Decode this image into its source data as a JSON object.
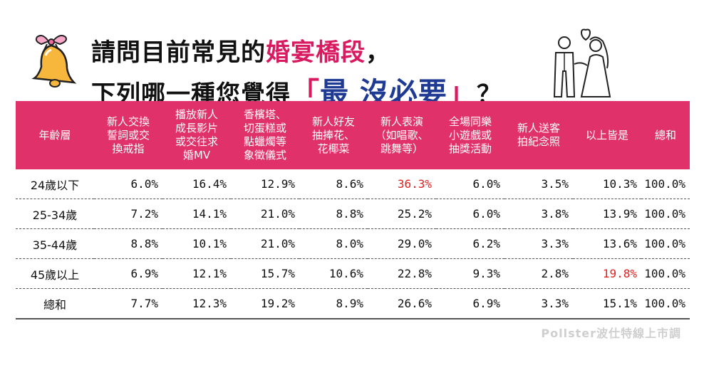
{
  "title": {
    "line1_prefix": "請問目前常見的",
    "line1_highlight": "婚宴橋段",
    "line1_suffix": "，",
    "line2_prefix": "下列哪一種您覺得",
    "line2_open": "「",
    "line2_highlight": "最 沒必要",
    "line2_close": "」",
    "line2_suffix": "？"
  },
  "source": "Pollster波仕特線上市調",
  "colors": {
    "header_bg": "#e0316b",
    "highlight_pink": "#d81b60",
    "highlight_navy": "#1f3a93",
    "max_value": "#e02020"
  },
  "chart_data": {
    "type": "table",
    "columns": [
      "年齡層",
      "新人交換誓詞或交換戒指",
      "播放新人成長影片或交往求婚MV",
      "香檳塔、切蛋糕或點蠟燭等象徵儀式",
      "新人好友抽捧花、花椰菜",
      "新人表演（如唱歌、跳舞等）",
      "全場同樂小遊戲或抽獎活動",
      "新人送客拍紀念照",
      "以上皆是",
      "總和"
    ],
    "header_lines": [
      [
        "年齡層"
      ],
      [
        "新人交換",
        "誓詞或交",
        "換戒指"
      ],
      [
        "播放新人",
        "成長影片",
        "或交往求",
        "婚MV"
      ],
      [
        "香檳塔、",
        "切蛋糕或",
        "點蠟燭等",
        "象徵儀式"
      ],
      [
        "新人好友",
        "抽捧花、",
        "花椰菜"
      ],
      [
        "新人表演",
        "（如唱歌、",
        "跳舞等）"
      ],
      [
        "全場同樂",
        "小遊戲或",
        "抽獎活動"
      ],
      [
        "新人送客",
        "拍紀念照"
      ],
      [
        "以上皆是"
      ],
      [
        "總和"
      ]
    ],
    "rows": [
      {
        "label": "24歲以下",
        "values": [
          "6.0%",
          "16.4%",
          "12.9%",
          "8.6%",
          "36.3%",
          "6.0%",
          "3.5%",
          "10.3%",
          "100.0%"
        ],
        "highlight_index": 4
      },
      {
        "label": "25-34歲",
        "values": [
          "7.2%",
          "14.1%",
          "21.0%",
          "8.8%",
          "25.2%",
          "6.0%",
          "3.8%",
          "13.9%",
          "100.0%"
        ],
        "highlight_index": -1
      },
      {
        "label": "35-44歲",
        "values": [
          "8.8%",
          "10.1%",
          "21.0%",
          "8.0%",
          "29.0%",
          "6.2%",
          "3.3%",
          "13.6%",
          "100.0%"
        ],
        "highlight_index": -1
      },
      {
        "label": "45歲以上",
        "values": [
          "6.9%",
          "12.1%",
          "15.7%",
          "10.6%",
          "22.8%",
          "9.3%",
          "2.8%",
          "19.8%",
          "100.0%"
        ],
        "highlight_index": 7
      },
      {
        "label": "總和",
        "values": [
          "7.7%",
          "12.3%",
          "19.2%",
          "8.9%",
          "26.6%",
          "6.9%",
          "3.3%",
          "15.1%",
          "100.0%"
        ],
        "highlight_index": -1
      }
    ]
  }
}
